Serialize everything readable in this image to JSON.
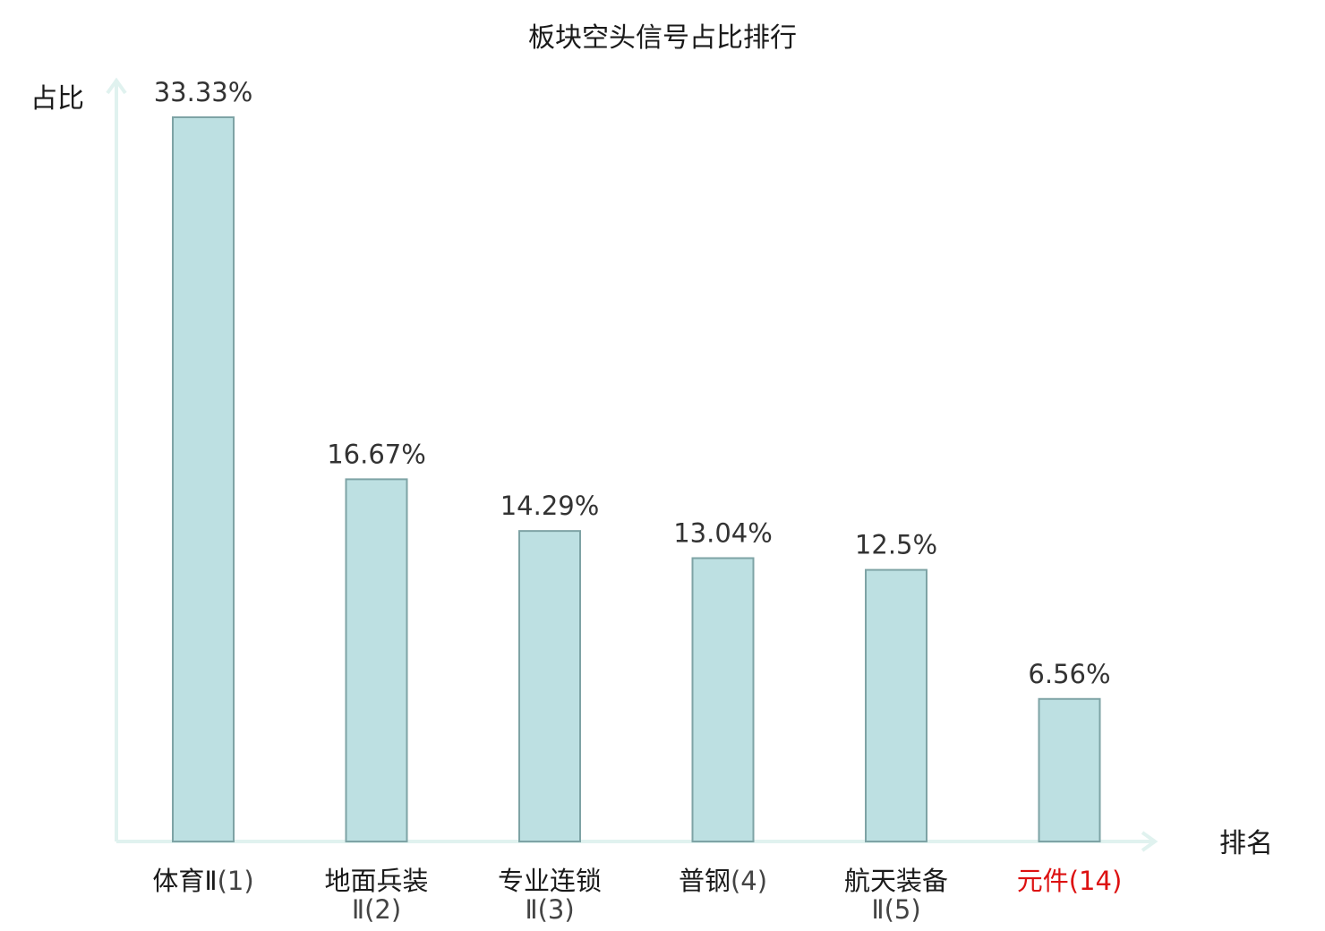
{
  "chart_data": {
    "type": "bar",
    "title": "板块空头信号占比排行",
    "ylabel": "占比",
    "xlabel": "排名",
    "ylim": [
      0,
      35
    ],
    "grid": false,
    "categories": [
      {
        "name_line1": "体育Ⅱ",
        "rank_suffix": "(1)",
        "name_line2": "",
        "highlight": false
      },
      {
        "name_line1": "地面兵装",
        "rank_suffix": "",
        "name_line2": "Ⅱ(2)",
        "highlight": false
      },
      {
        "name_line1": "专业连锁",
        "rank_suffix": "",
        "name_line2": "Ⅱ(3)",
        "highlight": false
      },
      {
        "name_line1": "普钢",
        "rank_suffix": "(4)",
        "name_line2": "",
        "highlight": false
      },
      {
        "name_line1": "航天装备",
        "rank_suffix": "",
        "name_line2": "Ⅱ(5)",
        "highlight": false
      },
      {
        "name_line1": "元件",
        "rank_suffix": "(14)",
        "name_line2": "",
        "highlight": true
      }
    ],
    "values": [
      33.33,
      16.67,
      14.29,
      13.04,
      12.5,
      6.56
    ],
    "value_labels": [
      "33.33%",
      "16.67%",
      "14.29%",
      "13.04%",
      "12.5%",
      "6.56%"
    ],
    "colors": {
      "bar_fill": "#bde0e2",
      "bar_stroke": "#7ea3a5",
      "axis": "#e0f2ef",
      "highlight_text": "#dd1111",
      "normal_text": "#1a1a1a"
    }
  }
}
